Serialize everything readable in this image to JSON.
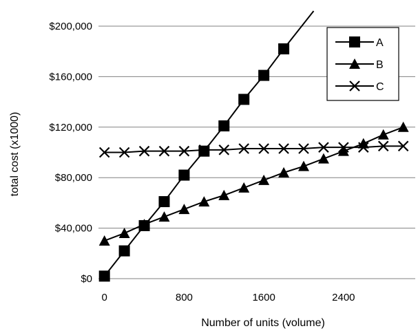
{
  "chart_data": {
    "type": "line",
    "title": "",
    "xlabel": "Number of units (volume)",
    "ylabel": "total cost (x1000)",
    "xlim": [
      -60,
      3120
    ],
    "ylim": [
      0,
      200000
    ],
    "x_ticks": [
      {
        "value": 0,
        "label": "0"
      },
      {
        "value": 800,
        "label": "800"
      },
      {
        "value": 1600,
        "label": "1600"
      },
      {
        "value": 2400,
        "label": "2400"
      }
    ],
    "y_ticks": [
      {
        "value": 0,
        "label": "$0"
      },
      {
        "value": 40000,
        "label": "$40,000"
      },
      {
        "value": 80000,
        "label": "$80,000"
      },
      {
        "value": 120000,
        "label": "$120,000"
      },
      {
        "value": 160000,
        "label": "$160,000"
      },
      {
        "value": 200000,
        "label": "$200,000"
      }
    ],
    "grid": "horizontal",
    "legend_position": "top-right",
    "series": [
      {
        "name": "A",
        "marker": "square",
        "color": "#000000",
        "x": [
          0,
          200,
          400,
          600,
          800,
          1000,
          1200,
          1400,
          1600,
          1800
        ],
        "y": [
          2000,
          22000,
          42000,
          61000,
          82000,
          101000,
          121000,
          142000,
          161000,
          182000
        ],
        "line_end": {
          "x": 2100,
          "y": 212000
        }
      },
      {
        "name": "B",
        "marker": "triangle",
        "color": "#000000",
        "x": [
          0,
          200,
          400,
          600,
          800,
          1000,
          1200,
          1400,
          1600,
          1800,
          2000,
          2200,
          2400,
          2600,
          2800,
          3000
        ],
        "y": [
          30000,
          36000,
          43000,
          49000,
          55000,
          61000,
          66000,
          72000,
          78000,
          84000,
          89000,
          95000,
          101000,
          107000,
          114000,
          120000
        ]
      },
      {
        "name": "C",
        "marker": "x",
        "color": "#000000",
        "x": [
          0,
          200,
          400,
          600,
          800,
          1000,
          1200,
          1400,
          1600,
          1800,
          2000,
          2200,
          2400,
          2600,
          2800,
          3000
        ],
        "y": [
          100000,
          100000,
          101000,
          101000,
          101000,
          102000,
          102000,
          103000,
          103000,
          103000,
          103000,
          104000,
          104000,
          104000,
          105000,
          105000
        ]
      }
    ]
  }
}
